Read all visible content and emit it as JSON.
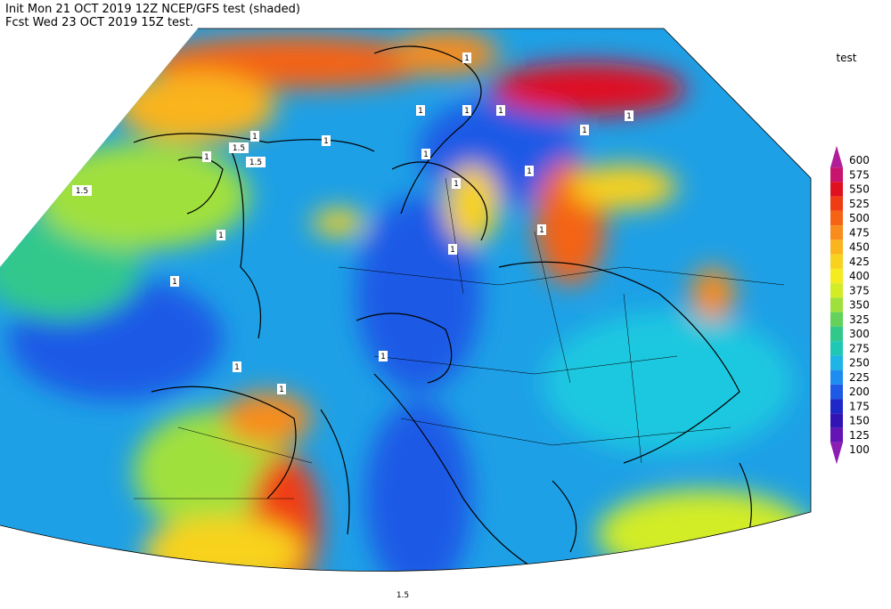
{
  "header": {
    "line1": "Init  Mon 21 OCT 2019 12Z  NCEP/GFS test (shaded)",
    "line2": "Fcst Wed 23 OCT 2019 15Z  test."
  },
  "colorbar": {
    "label": "test",
    "levels": [
      600,
      575,
      550,
      525,
      500,
      475,
      450,
      425,
      400,
      375,
      350,
      325,
      300,
      275,
      250,
      225,
      200,
      175,
      150,
      125,
      100
    ],
    "colors": [
      "#b01e9a",
      "#c8146e",
      "#e01020",
      "#f03c14",
      "#f46414",
      "#f88c1c",
      "#fab41e",
      "#f8d21e",
      "#f4ec1e",
      "#d2ec28",
      "#a0e03c",
      "#64d25a",
      "#32c88c",
      "#1ec8b4",
      "#1eb4e6",
      "#1e8cf0",
      "#1e5ae6",
      "#1e28c8",
      "#3214b4",
      "#6414b4",
      "#8c1eb4"
    ]
  },
  "contour_labels": [
    "1",
    "1",
    "1",
    "1",
    "1",
    "1",
    "1.5",
    "1.5",
    "1.5",
    "1",
    "1",
    "1",
    "1",
    "1",
    "1",
    "1",
    "1",
    "1",
    "1",
    "1",
    "1",
    "1",
    "1.5"
  ]
}
